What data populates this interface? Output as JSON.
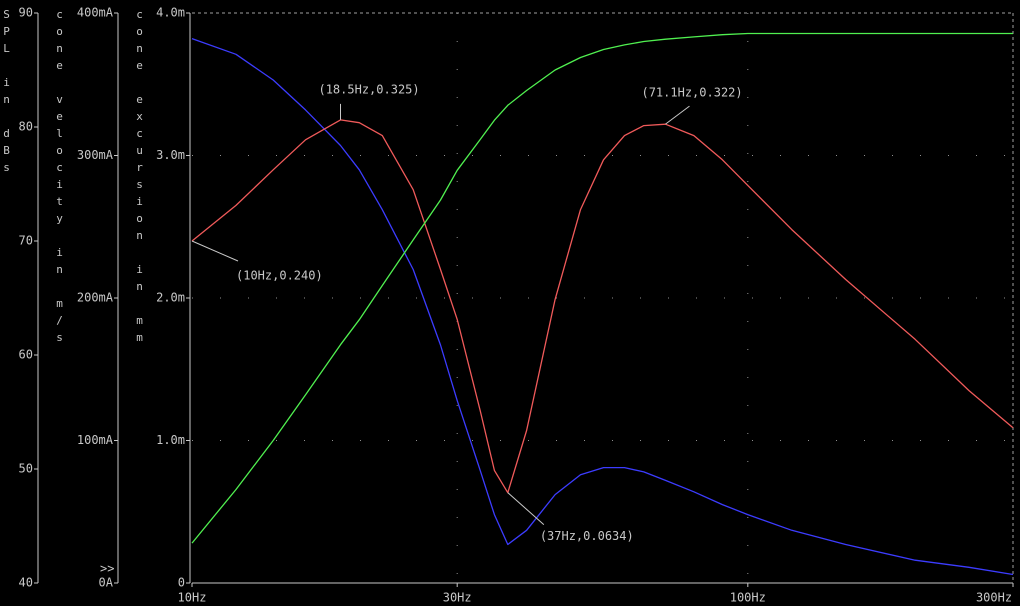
{
  "chart_data": {
    "type": "line",
    "background": "#000000",
    "xlim": [
      10,
      300
    ],
    "log_x": true,
    "xticks": [
      {
        "value": 10,
        "label": "10Hz"
      },
      {
        "value": 30,
        "label": "30Hz"
      },
      {
        "value": 100,
        "label": "100Hz"
      },
      {
        "value": 300,
        "label": "300Hz"
      }
    ],
    "ylabel": "SPL in dBs",
    "ylim": [
      40,
      90
    ],
    "yticks": [
      40,
      50,
      60,
      70,
      80,
      90
    ],
    "y2label": "cone velocity in m/s",
    "y2lim": [
      0,
      0.4
    ],
    "y2ticks": [
      {
        "value": 0,
        "label": "0A"
      },
      {
        "value": 0.1,
        "label": "100mA"
      },
      {
        "value": 0.2,
        "label": "200mA"
      },
      {
        "value": 0.3,
        "label": "300mA"
      },
      {
        "value": 0.4,
        "label": "400mA"
      }
    ],
    "y3label": "cone excursion in mm",
    "y3lim": [
      0,
      0.004
    ],
    "y3ticks": [
      0,
      {
        "value": 0.001,
        "label": "1.0m"
      },
      {
        "value": 0.002,
        "label": "2.0m"
      },
      {
        "value": 0.003,
        "label": "3.0m"
      },
      {
        "value": 0.004,
        "label": "4.0m"
      }
    ],
    "axis_marker": ">>",
    "grid": true,
    "x": [
      10,
      12,
      14,
      16,
      18.5,
      20,
      22,
      25,
      28,
      30,
      33,
      35,
      37,
      40,
      45,
      50,
      55,
      60,
      65,
      71.1,
      80,
      90,
      100,
      120,
      150,
      200,
      250,
      300
    ],
    "series": [
      {
        "color": "#3c3cff",
        "axis": "y3",
        "values": [
          0.00382,
          0.00371,
          0.00353,
          0.00332,
          0.00307,
          0.0029,
          0.00262,
          0.0022,
          0.00167,
          0.00128,
          0.00079,
          0.00048,
          0.00027,
          0.00037,
          0.00062,
          0.00076,
          0.00081,
          0.00081,
          0.00078,
          0.00072,
          0.00064,
          0.00055,
          0.00048,
          0.00037,
          0.00027,
          0.00016,
          0.00011,
          6e-05
        ]
      },
      {
        "color": "#f05a5a",
        "axis": "y2",
        "values": [
          0.24,
          0.265,
          0.29,
          0.311,
          0.325,
          0.323,
          0.314,
          0.276,
          0.22,
          0.185,
          0.121,
          0.079,
          0.0634,
          0.107,
          0.199,
          0.262,
          0.297,
          0.314,
          0.321,
          0.322,
          0.314,
          0.297,
          0.279,
          0.248,
          0.213,
          0.171,
          0.135,
          0.109
        ]
      },
      {
        "color": "#50f050",
        "axis": "y",
        "values": [
          43.5,
          48.2,
          52.5,
          56.5,
          60.9,
          63.1,
          66.1,
          70.1,
          73.6,
          76.2,
          78.9,
          80.6,
          81.9,
          83.2,
          85,
          86.1,
          86.8,
          87.2,
          87.5,
          87.7,
          87.9,
          88.1,
          88.2,
          88.2,
          88.2,
          88.2,
          88.2,
          88.2
        ]
      }
    ],
    "annotations": [
      {
        "text": "(18.5Hz,0.325)",
        "x": 18.5,
        "y": 0.325,
        "axis": "y2"
      },
      {
        "text": "(71.1Hz,0.322)",
        "x": 71.1,
        "y": 0.322,
        "axis": "y2"
      },
      {
        "text": "(10Hz,0.240)",
        "x": 10,
        "y": 0.24,
        "axis": "y2"
      },
      {
        "text": "(37Hz,0.0634)",
        "x": 37,
        "y": 0.0634,
        "axis": "y2"
      }
    ]
  }
}
